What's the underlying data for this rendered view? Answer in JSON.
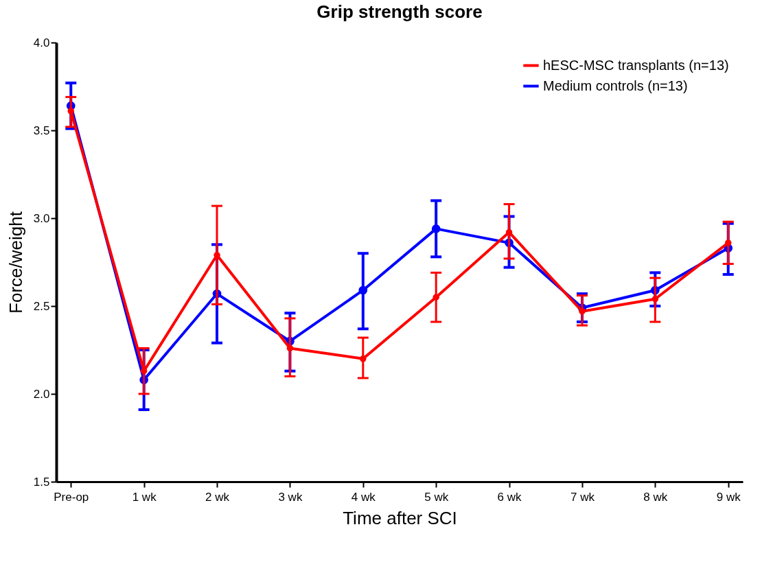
{
  "chart_data": {
    "type": "line",
    "title": "Grip strength score",
    "xlabel": "Time after SCI",
    "ylabel": "Force/weight",
    "categories": [
      "Pre-op",
      "1 wk",
      "2 wk",
      "3 wk",
      "4 wk",
      "5 wk",
      "6 wk",
      "7 wk",
      "8 wk",
      "9 wk"
    ],
    "series": [
      {
        "name": "hESC-MSC transplants (n=13)",
        "color": "#ff0000",
        "values": [
          3.61,
          2.13,
          2.79,
          2.26,
          2.2,
          2.55,
          2.92,
          2.47,
          2.54,
          2.86
        ],
        "errors": [
          [
            3.52,
            3.69
          ],
          [
            2.0,
            2.26
          ],
          [
            2.51,
            3.07
          ],
          [
            2.1,
            2.43
          ],
          [
            2.09,
            2.32
          ],
          [
            2.41,
            2.69
          ],
          [
            2.77,
            3.08
          ],
          [
            2.39,
            2.56
          ],
          [
            2.41,
            2.66
          ],
          [
            2.74,
            2.98
          ]
        ]
      },
      {
        "name": "Medium controls (n=13)",
        "color": "#0000ff",
        "values": [
          3.64,
          2.08,
          2.57,
          2.3,
          2.59,
          2.94,
          2.86,
          2.49,
          2.59,
          2.83
        ],
        "errors": [
          [
            3.51,
            3.77
          ],
          [
            1.91,
            2.25
          ],
          [
            2.29,
            2.85
          ],
          [
            2.13,
            2.46
          ],
          [
            2.37,
            2.8
          ],
          [
            2.78,
            3.1
          ],
          [
            2.72,
            3.01
          ],
          [
            2.41,
            2.57
          ],
          [
            2.5,
            2.69
          ],
          [
            2.68,
            2.97
          ]
        ]
      }
    ],
    "ylim": [
      1.5,
      4.0
    ],
    "yticks": [
      1.5,
      {
        "value": 2,
        "label": "2.0"
      },
      2.5,
      {
        "value": 3,
        "label": "3.0"
      },
      3.5,
      {
        "value": 4,
        "label": "4.0"
      }
    ],
    "marker": "circle",
    "line_style": "solid",
    "legend": "top right"
  }
}
